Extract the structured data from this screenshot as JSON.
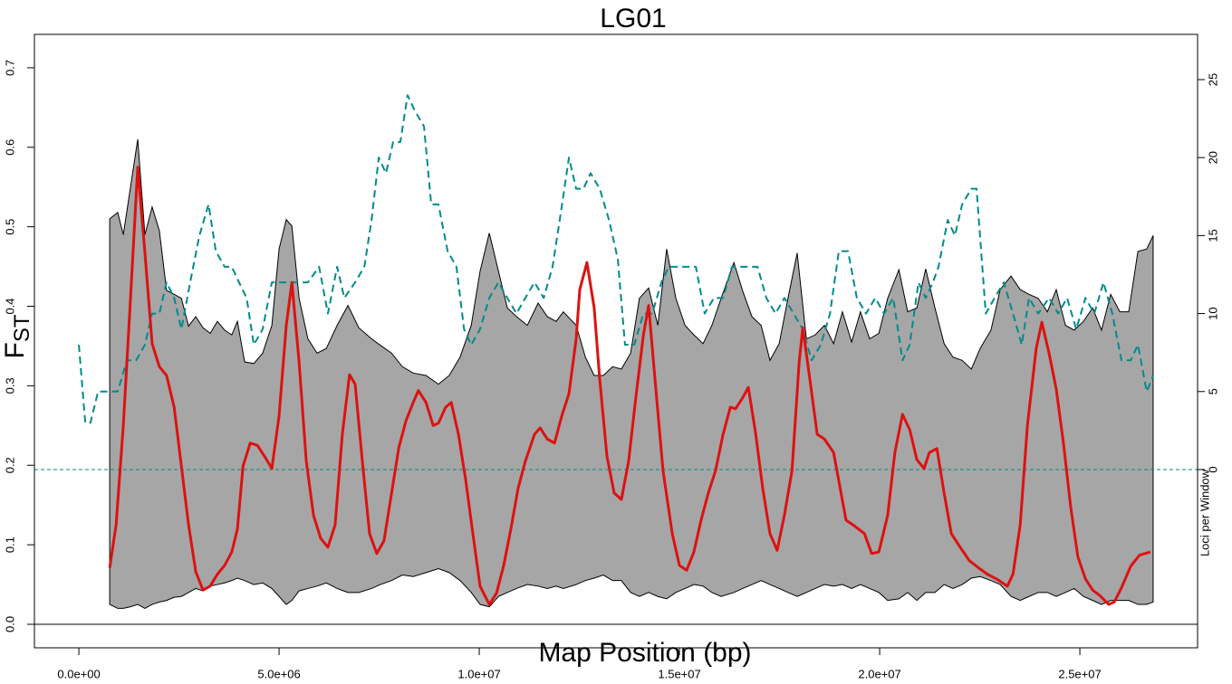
{
  "chart_data": {
    "type": "line",
    "title": "LG01",
    "x_label": "Map Position (bp)",
    "y_label": "F",
    "y_label_sub": "ST",
    "y2_label": "Loci per Window",
    "xlim": [
      -1110000.0,
      27940000.0
    ],
    "ylim": [
      -0.0296,
      0.742
    ],
    "y2lim": [
      -11.43,
      27.9
    ],
    "xticks": [
      {
        "value": 0,
        "label": "0.0e+00"
      },
      {
        "value": 5000000,
        "label": "5.0e+06"
      },
      {
        "value": 10000000,
        "label": "1.0e+07"
      },
      {
        "value": 15000000,
        "label": "1.5e+07"
      },
      {
        "value": 20000000,
        "label": "2.0e+07"
      },
      {
        "value": 25000000,
        "label": "2.5e+07"
      }
    ],
    "yticks": [
      {
        "value": 0,
        "label": "0.0"
      },
      0.1,
      0.2,
      0.3,
      0.4,
      0.5,
      0.6,
      0.7
    ],
    "y2ticks": [
      0,
      5,
      10,
      15,
      20,
      25
    ],
    "reference_lines": [
      {
        "axis": "y",
        "value": 0,
        "color": "#000000",
        "dashed": false
      },
      {
        "axis": "y2",
        "value": 0,
        "color": "#008b8b",
        "dashed": true
      }
    ],
    "band": {
      "color": "#a6a6a6",
      "edge_color": "#000000",
      "x": [
        770000.0,
        970000.0,
        1110000.0,
        1290000.0,
        1470000.0,
        1650000.0,
        1830000.0,
        2010000.0,
        2190000.0,
        2380000.0,
        2560000.0,
        2740000.0,
        2920000.0,
        3100000.0,
        3280000.0,
        3460000.0,
        3640000.0,
        3820000.0,
        3960000.0,
        4140000.0,
        4370000.0,
        4590000.0,
        4820000.0,
        5000000.0,
        5180000.0,
        5320000.0,
        5500000.0,
        5720000.0,
        5950000.0,
        6180000.0,
        6450000.0,
        6720000.0,
        6990000.0,
        7310000.0,
        7530000.0,
        7810000.0,
        8080000.0,
        8350000.0,
        8670000.0,
        8980000.0,
        9250000.0,
        9520000.0,
        9800000.0,
        10020000.0,
        10250000.0,
        10480000.0,
        10700000.0,
        10930000.0,
        11200000.0,
        11470000.0,
        11700000.0,
        11920000.0,
        12100000.0,
        12420000.0,
        12650000.0,
        12870000.0,
        13100000.0,
        13330000.0,
        13550000.0,
        13780000.0,
        14000000.0,
        14230000.0,
        14460000.0,
        14680000.0,
        14910000.0,
        15140000.0,
        15360000.0,
        15590000.0,
        15810000.0,
        16040000.0,
        16360000.0,
        16580000.0,
        16810000.0,
        17040000.0,
        17260000.0,
        17490000.0,
        17710000.0,
        17940000.0,
        18170000.0,
        18390000.0,
        18620000.0,
        18850000.0,
        19070000.0,
        19300000.0,
        19520000.0,
        19750000.0,
        19980000.0,
        20200000.0,
        20480000.0,
        20700000.0,
        20930000.0,
        21150000.0,
        21380000.0,
        21610000.0,
        21830000.0,
        22060000.0,
        22290000.0,
        22510000.0,
        22780000.0,
        23010000.0,
        23280000.0,
        23510000.0,
        23730000.0,
        23960000.0,
        24190000.0,
        24410000.0,
        24640000.0,
        24860000.0,
        25090000.0,
        25320000.0,
        25540000.0,
        25770000.0,
        26000000.0,
        26220000.0,
        26450000.0,
        26670000.0,
        26830000.0
      ],
      "upper": [
        0.51,
        0.518,
        0.49,
        0.55,
        0.61,
        0.49,
        0.525,
        0.495,
        0.42,
        0.415,
        0.41,
        0.375,
        0.387,
        0.373,
        0.366,
        0.381,
        0.37,
        0.364,
        0.381,
        0.33,
        0.328,
        0.341,
        0.376,
        0.472,
        0.509,
        0.501,
        0.41,
        0.359,
        0.341,
        0.347,
        0.376,
        0.401,
        0.373,
        0.359,
        0.351,
        0.341,
        0.324,
        0.316,
        0.313,
        0.302,
        0.313,
        0.336,
        0.376,
        0.444,
        0.492,
        0.444,
        0.398,
        0.387,
        0.376,
        0.404,
        0.387,
        0.381,
        0.393,
        0.376,
        0.336,
        0.313,
        0.313,
        0.324,
        0.321,
        0.341,
        0.41,
        0.423,
        0.376,
        0.472,
        0.41,
        0.376,
        0.364,
        0.353,
        0.376,
        0.41,
        0.455,
        0.419,
        0.387,
        0.376,
        0.332,
        0.353,
        0.41,
        0.467,
        0.359,
        0.364,
        0.376,
        0.353,
        0.393,
        0.355,
        0.393,
        0.359,
        0.366,
        0.41,
        0.446,
        0.393,
        0.398,
        0.447,
        0.398,
        0.353,
        0.336,
        0.332,
        0.321,
        0.347,
        0.37,
        0.421,
        0.438,
        0.421,
        0.415,
        0.41,
        0.393,
        0.421,
        0.376,
        0.37,
        0.381,
        0.398,
        0.37,
        0.415,
        0.393,
        0.393,
        0.469,
        0.472,
        0.489
      ],
      "lower": [
        0.025,
        0.02,
        0.02,
        0.022,
        0.025,
        0.02,
        0.025,
        0.028,
        0.03,
        0.034,
        0.035,
        0.04,
        0.045,
        0.042,
        0.048,
        0.05,
        0.052,
        0.055,
        0.058,
        0.055,
        0.05,
        0.052,
        0.045,
        0.035,
        0.025,
        0.03,
        0.042,
        0.045,
        0.048,
        0.052,
        0.045,
        0.04,
        0.04,
        0.045,
        0.05,
        0.055,
        0.062,
        0.06,
        0.065,
        0.07,
        0.065,
        0.055,
        0.04,
        0.025,
        0.022,
        0.035,
        0.04,
        0.045,
        0.05,
        0.048,
        0.045,
        0.048,
        0.045,
        0.05,
        0.055,
        0.058,
        0.062,
        0.055,
        0.055,
        0.04,
        0.035,
        0.04,
        0.035,
        0.032,
        0.04,
        0.045,
        0.05,
        0.048,
        0.04,
        0.035,
        0.04,
        0.045,
        0.05,
        0.055,
        0.05,
        0.045,
        0.04,
        0.035,
        0.04,
        0.045,
        0.05,
        0.048,
        0.05,
        0.045,
        0.05,
        0.045,
        0.04,
        0.03,
        0.032,
        0.04,
        0.03,
        0.04,
        0.04,
        0.05,
        0.045,
        0.05,
        0.058,
        0.06,
        0.055,
        0.05,
        0.035,
        0.03,
        0.035,
        0.04,
        0.04,
        0.035,
        0.04,
        0.045,
        0.035,
        0.03,
        0.025,
        0.03,
        0.03,
        0.03,
        0.025,
        0.025,
        0.028
      ]
    },
    "series": [
      {
        "color": "#008b8b",
        "axis": "y2",
        "dashed": true,
        "width": 2,
        "x": [
          0,
          160000.0,
          290000.0,
          480000.0,
          770000.0,
          970000.0,
          1200000.0,
          1430000.0,
          1650000.0,
          1830000.0,
          2010000.0,
          2190000.0,
          2380000.0,
          2560000.0,
          2780000.0,
          3010000.0,
          3240000.0,
          3420000.0,
          3640000.0,
          3820000.0,
          4000000.0,
          4190000.0,
          4370000.0,
          4590000.0,
          4820000.0,
          5050000.0,
          5320000.0,
          5720000.0,
          6000000.0,
          6220000.0,
          6450000.0,
          6630000.0,
          6900000.0,
          7130000.0,
          7310000.0,
          7490000.0,
          7670000.0,
          7850000.0,
          8030000.0,
          8210000.0,
          8390000.0,
          8620000.0,
          8800000.0,
          8980000.0,
          9210000.0,
          9430000.0,
          9620000.0,
          9800000.0,
          10020000.0,
          10250000.0,
          10480000.0,
          10700000.0,
          10930000.0,
          11150000.0,
          11380000.0,
          11610000.0,
          11830000.0,
          12010000.0,
          12240000.0,
          12420000.0,
          12600000.0,
          12780000.0,
          13010000.0,
          13240000.0,
          13460000.0,
          13640000.0,
          13870000.0,
          14100000.0,
          14320000.0,
          14550000.0,
          14730000.0,
          15000000.0,
          15410000.0,
          15630000.0,
          15860000.0,
          16090000.0,
          16310000.0,
          16950000.0,
          17170000.0,
          17400000.0,
          17620000.0,
          17850000.0,
          18080000.0,
          18300000.0,
          18530000.0,
          18760000.0,
          18980000.0,
          19210000.0,
          19430000.0,
          19660000.0,
          19890000.0,
          20110000.0,
          20340000.0,
          20570000.0,
          20750000.0,
          20970000.0,
          21150000.0,
          21330000.0,
          21470000.0,
          21700000.0,
          21880000.0,
          22060000.0,
          22290000.0,
          22420000.0,
          22650000.0,
          22870000.0,
          23100000.0,
          23330000.0,
          23550000.0,
          23730000.0,
          23960000.0,
          24230000.0,
          24460000.0,
          24680000.0,
          24910000.0,
          25140000.0,
          25360000.0,
          25590000.0,
          25810000.0,
          26040000.0,
          26270000.0,
          26450000.0,
          26670000.0,
          26830000.0
        ],
        "values": [
          8,
          3,
          3,
          5,
          5,
          5,
          7,
          7,
          8,
          10,
          10,
          12,
          11,
          9,
          12,
          15,
          17,
          14,
          13,
          13,
          12,
          11,
          8,
          9,
          12,
          12,
          12,
          12,
          13,
          10,
          13,
          11,
          12,
          13,
          16,
          20,
          19,
          21,
          21,
          24,
          23,
          22,
          17,
          17,
          14,
          13,
          9,
          8,
          9,
          11,
          12,
          11,
          10,
          11,
          12,
          11,
          13,
          16,
          20,
          18,
          18,
          19,
          18,
          16,
          13.5,
          8,
          8,
          10,
          10,
          12,
          13,
          13,
          13,
          10,
          11,
          11,
          13,
          13,
          11,
          10,
          11,
          10,
          9,
          7,
          8,
          10,
          14,
          14,
          11,
          10,
          11,
          10,
          11,
          7,
          8,
          12,
          11,
          12,
          13,
          16,
          15,
          17,
          18,
          18,
          10,
          11,
          12,
          10,
          8,
          11,
          10,
          11,
          10,
          11,
          9,
          11,
          10,
          12,
          10,
          7,
          7,
          8,
          5,
          6
        ]
      },
      {
        "color": "#dd1111",
        "axis": "y",
        "dashed": false,
        "width": 3,
        "x": [
          770000.0,
          930000.0,
          1110000.0,
          1290000.0,
          1470000.0,
          1650000.0,
          1830000.0,
          2010000.0,
          2190000.0,
          2380000.0,
          2560000.0,
          2740000.0,
          2920000.0,
          3100000.0,
          3280000.0,
          3460000.0,
          3640000.0,
          3820000.0,
          3960000.0,
          4100000.0,
          4280000.0,
          4460000.0,
          4640000.0,
          4820000.0,
          5000000.0,
          5180000.0,
          5320000.0,
          5500000.0,
          5680000.0,
          5860000.0,
          6040000.0,
          6220000.0,
          6400000.0,
          6580000.0,
          6760000.0,
          6900000.0,
          7080000.0,
          7260000.0,
          7440000.0,
          7620000.0,
          7810000.0,
          7990000.0,
          8170000.0,
          8350000.0,
          8480000.0,
          8670000.0,
          8850000.0,
          8980000.0,
          9160000.0,
          9300000.0,
          9480000.0,
          9660000.0,
          9840000.0,
          10020000.0,
          10250000.0,
          10430000.0,
          10610000.0,
          10790000.0,
          10970000.0,
          11150000.0,
          11380000.0,
          11520000.0,
          11700000.0,
          11880000.0,
          12060000.0,
          12240000.0,
          12420000.0,
          12510000.0,
          12690000.0,
          12870000.0,
          13010000.0,
          13190000.0,
          13370000.0,
          13550000.0,
          13730000.0,
          13910000.0,
          14100000.0,
          14230000.0,
          14370000.0,
          14590000.0,
          14820000.0,
          15000000.0,
          15180000.0,
          15360000.0,
          15540000.0,
          15720000.0,
          15900000.0,
          16090000.0,
          16270000.0,
          16400000.0,
          16580000.0,
          16720000.0,
          16900000.0,
          17080000.0,
          17260000.0,
          17440000.0,
          17620000.0,
          17810000.0,
          17990000.0,
          18080000.0,
          18260000.0,
          18440000.0,
          18620000.0,
          18850000.0,
          19160000.0,
          19390000.0,
          19620000.0,
          19800000.0,
          19980000.0,
          20200000.0,
          20380000.0,
          20570000.0,
          20750000.0,
          20930000.0,
          21110000.0,
          21240000.0,
          21430000.0,
          21610000.0,
          21790000.0,
          22010000.0,
          22240000.0,
          22470000.0,
          22690000.0,
          22920000.0,
          23190000.0,
          23330000.0,
          23510000.0,
          23690000.0,
          23910000.0,
          24050000.0,
          24230000.0,
          24410000.0,
          24590000.0,
          24770000.0,
          24950000.0,
          25140000.0,
          25320000.0,
          25500000.0,
          25720000.0,
          25860000.0,
          26040000.0,
          26270000.0,
          26490000.0,
          26760000.0
        ],
        "values": [
          0.071,
          0.125,
          0.25,
          0.41,
          0.575,
          0.467,
          0.353,
          0.324,
          0.313,
          0.273,
          0.199,
          0.125,
          0.066,
          0.043,
          0.048,
          0.063,
          0.074,
          0.091,
          0.12,
          0.199,
          0.228,
          0.225,
          0.211,
          0.196,
          0.262,
          0.376,
          0.43,
          0.33,
          0.205,
          0.137,
          0.108,
          0.097,
          0.125,
          0.239,
          0.314,
          0.302,
          0.205,
          0.114,
          0.089,
          0.105,
          0.165,
          0.222,
          0.256,
          0.279,
          0.294,
          0.279,
          0.25,
          0.253,
          0.273,
          0.279,
          0.239,
          0.182,
          0.114,
          0.048,
          0.025,
          0.039,
          0.074,
          0.12,
          0.171,
          0.205,
          0.239,
          0.247,
          0.233,
          0.228,
          0.262,
          0.29,
          0.359,
          0.421,
          0.455,
          0.398,
          0.307,
          0.211,
          0.165,
          0.157,
          0.205,
          0.285,
          0.364,
          0.401,
          0.319,
          0.193,
          0.114,
          0.074,
          0.068,
          0.091,
          0.131,
          0.165,
          0.193,
          0.239,
          0.273,
          0.271,
          0.285,
          0.298,
          0.241,
          0.171,
          0.114,
          0.093,
          0.137,
          0.193,
          0.33,
          0.373,
          0.307,
          0.239,
          0.233,
          0.216,
          0.131,
          0.123,
          0.114,
          0.089,
          0.091,
          0.137,
          0.216,
          0.264,
          0.245,
          0.207,
          0.196,
          0.216,
          0.221,
          0.165,
          0.114,
          0.097,
          0.08,
          0.071,
          0.063,
          0.057,
          0.048,
          0.063,
          0.125,
          0.25,
          0.347,
          0.38,
          0.341,
          0.296,
          0.228,
          0.148,
          0.085,
          0.057,
          0.043,
          0.036,
          0.025,
          0.028,
          0.046,
          0.073,
          0.087,
          0.091
        ]
      }
    ]
  }
}
